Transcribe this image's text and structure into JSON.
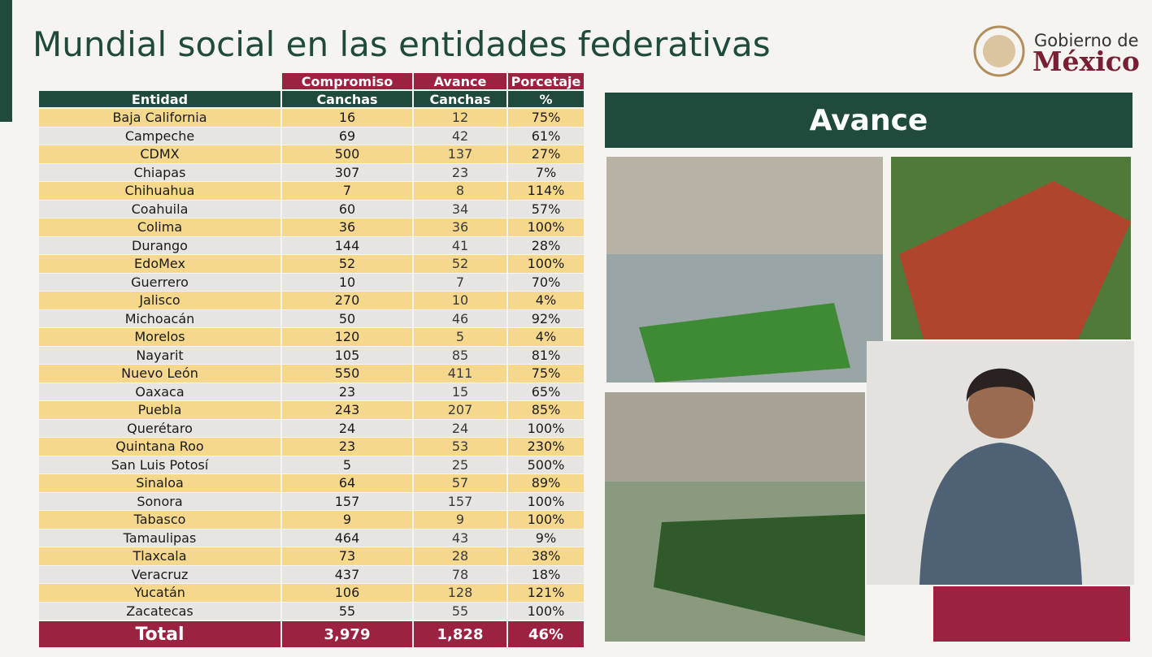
{
  "header": {
    "title": "Mundial social en las entidades federativas",
    "logo": {
      "line1": "Gobierno de",
      "line2": "México"
    }
  },
  "table": {
    "group_headers": [
      "Compromiso",
      "Avance",
      "Porcetaje"
    ],
    "headers": [
      "Entidad",
      "Canchas",
      "Canchas",
      "%"
    ],
    "rows": [
      [
        "Baja California",
        "16",
        "12",
        "75%"
      ],
      [
        "Campeche",
        "69",
        "42",
        "61%"
      ],
      [
        "CDMX",
        "500",
        "137",
        "27%"
      ],
      [
        "Chiapas",
        "307",
        "23",
        "7%"
      ],
      [
        "Chihuahua",
        "7",
        "8",
        "114%"
      ],
      [
        "Coahuila",
        "60",
        "34",
        "57%"
      ],
      [
        "Colima",
        "36",
        "36",
        "100%"
      ],
      [
        "Durango",
        "144",
        "41",
        "28%"
      ],
      [
        "EdoMex",
        "52",
        "52",
        "100%"
      ],
      [
        "Guerrero",
        "10",
        "7",
        "70%"
      ],
      [
        "Jalisco",
        "270",
        "10",
        "4%"
      ],
      [
        "Michoacán",
        "50",
        "46",
        "92%"
      ],
      [
        "Morelos",
        "120",
        "5",
        "4%"
      ],
      [
        "Nayarit",
        "105",
        "85",
        "81%"
      ],
      [
        "Nuevo León",
        "550",
        "411",
        "75%"
      ],
      [
        "Oaxaca",
        "23",
        "15",
        "65%"
      ],
      [
        "Puebla",
        "243",
        "207",
        "85%"
      ],
      [
        "Querétaro",
        "24",
        "24",
        "100%"
      ],
      [
        "Quintana Roo",
        "23",
        "53",
        "230%"
      ],
      [
        "San Luis Potosí",
        "5",
        "25",
        "500%"
      ],
      [
        "Sinaloa",
        "64",
        "57",
        "89%"
      ],
      [
        "Sonora",
        "157",
        "157",
        "100%"
      ],
      [
        "Tabasco",
        "9",
        "9",
        "100%"
      ],
      [
        "Tamaulipas",
        "464",
        "43",
        "9%"
      ],
      [
        "Tlaxcala",
        "73",
        "28",
        "38%"
      ],
      [
        "Veracruz",
        "437",
        "78",
        "18%"
      ],
      [
        "Yucatán",
        "106",
        "128",
        "121%"
      ],
      [
        "Zacatecas",
        "55",
        "55",
        "100%"
      ]
    ],
    "total": [
      "Total",
      "3,979",
      "1,828",
      "46%"
    ]
  },
  "panel": {
    "title": "Avance"
  }
}
